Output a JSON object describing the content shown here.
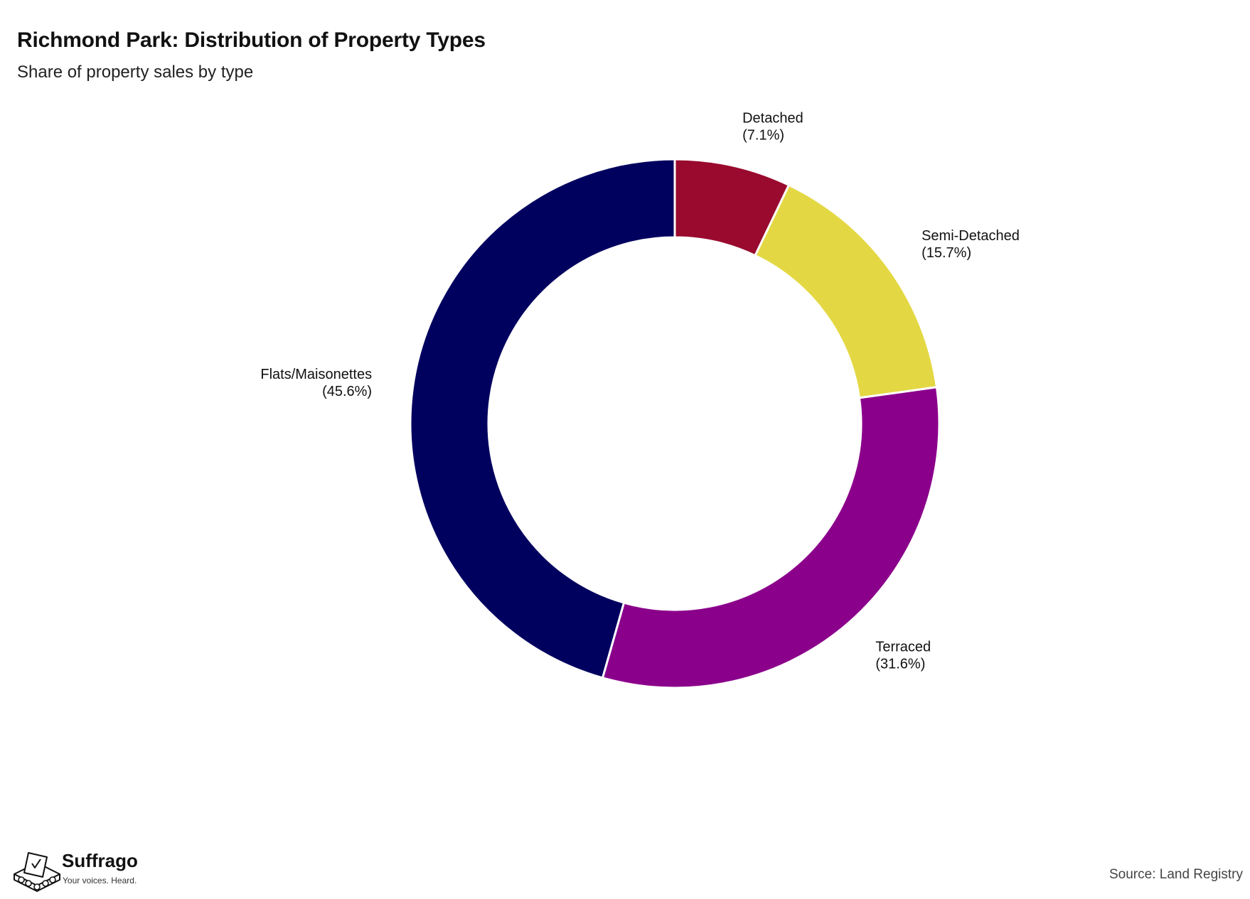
{
  "chart_data": {
    "type": "pie",
    "variant": "donut",
    "title": "Richmond Park: Distribution of Property Types",
    "subtitle": "Share of property sales by type",
    "categories": [
      "Detached",
      "Semi-Detached",
      "Terraced",
      "Flats/Maisonettes"
    ],
    "values": [
      7.1,
      15.7,
      31.6,
      45.6
    ],
    "labels": [
      {
        "name": "Detached",
        "pct": "(7.1%)"
      },
      {
        "name": "Semi-Detached",
        "pct": "(15.7%)"
      },
      {
        "name": "Terraced",
        "pct": "(31.6%)"
      },
      {
        "name": "Flats/Maisonettes",
        "pct": "(45.6%)"
      }
    ],
    "colors": [
      "#990a2e",
      "#e3d843",
      "#8b008b",
      "#00005f"
    ],
    "start_angle": "12 o'clock",
    "direction": "clockwise",
    "legend": "none",
    "source": "Source: Land Registry"
  },
  "brand": {
    "name": "Suffrago",
    "tagline": "Your voices. Heard."
  }
}
